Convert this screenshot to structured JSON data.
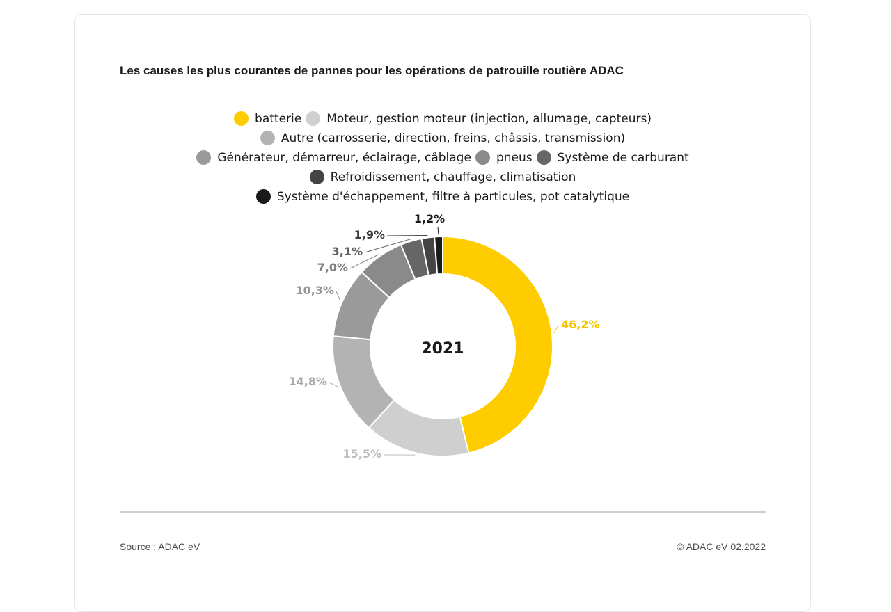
{
  "chart_data": {
    "type": "pie",
    "variant": "donut",
    "title": "Les causes les plus courantes de pannes pour les opérations de patrouille routière ADAC",
    "center_label": "2021",
    "categories": [
      "batterie",
      "Moteur, gestion moteur (injection, allumage, capteurs)",
      "Autre (carrosserie, direction, freins, châssis, transmission)",
      "Générateur, démarreur, éclairage, câblage",
      "pneus",
      "Système de carburant",
      "Refroidissement, chauffage, climatisation",
      "Système d'échappement, filtre à particules, pot catalytique"
    ],
    "values": [
      46.2,
      15.5,
      14.8,
      10.3,
      7.0,
      3.1,
      1.9,
      1.2
    ],
    "data_labels": [
      "46,2%",
      "15,5%",
      "14,8%",
      "10,3%",
      "7,0%",
      "3,1%",
      "1,9%",
      "1,2%"
    ],
    "colors": [
      "#ffcc00",
      "#cfcfcf",
      "#b3b3b3",
      "#9a9a9a",
      "#8a8a8a",
      "#666666",
      "#444444",
      "#1a1a1a"
    ],
    "label_colors": [
      "#f5c400",
      "#bdbdbd",
      "#a8a8a8",
      "#949494",
      "#7d7d7d",
      "#5e5e5e",
      "#3d3d3d",
      "#1a1a1a"
    ],
    "legend_placement": "top",
    "legend_rows": [
      [
        0,
        1
      ],
      [
        2
      ],
      [
        3,
        4,
        5
      ],
      [
        6
      ],
      [
        7
      ]
    ]
  },
  "footer": {
    "source": "Source : ADAC eV",
    "copyright": "© ADAC eV 02.2022"
  }
}
